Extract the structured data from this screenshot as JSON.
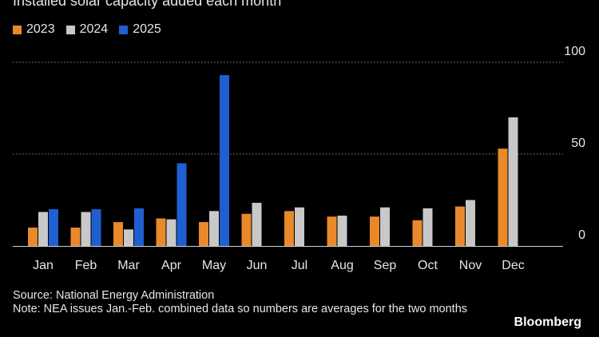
{
  "header": {
    "title": "Installed solar capacity added each month"
  },
  "chart_data": {
    "type": "bar",
    "title": "Installed solar capacity added each month",
    "categories": [
      "Jan",
      "Feb",
      "Mar",
      "Apr",
      "May",
      "Jun",
      "Jul",
      "Aug",
      "Sep",
      "Oct",
      "Nov",
      "Dec"
    ],
    "series": [
      {
        "name": "2023",
        "color": "#e8892b",
        "values": [
          10,
          10,
          13,
          15,
          13,
          17.5,
          19,
          16,
          16,
          14,
          21.5,
          53
        ]
      },
      {
        "name": "2024",
        "color": "#c8c8c8",
        "values": [
          18.5,
          18.5,
          9,
          14.5,
          19,
          23.5,
          21,
          16.5,
          21,
          20.5,
          25,
          70
        ]
      },
      {
        "name": "2025",
        "color": "#1f5fd1",
        "values": [
          20,
          20,
          20.5,
          45,
          93,
          null,
          null,
          null,
          null,
          null,
          null,
          null
        ]
      }
    ],
    "y_ticks": [
      0,
      50,
      100
    ],
    "ylim": [
      0,
      100
    ],
    "grid": true,
    "legend": "top-left"
  },
  "footer": {
    "source": "Source: National Energy Administration",
    "note": "Note: NEA issues Jan.-Feb. combined data so numbers are averages for the two months",
    "brand": "Bloomberg"
  }
}
